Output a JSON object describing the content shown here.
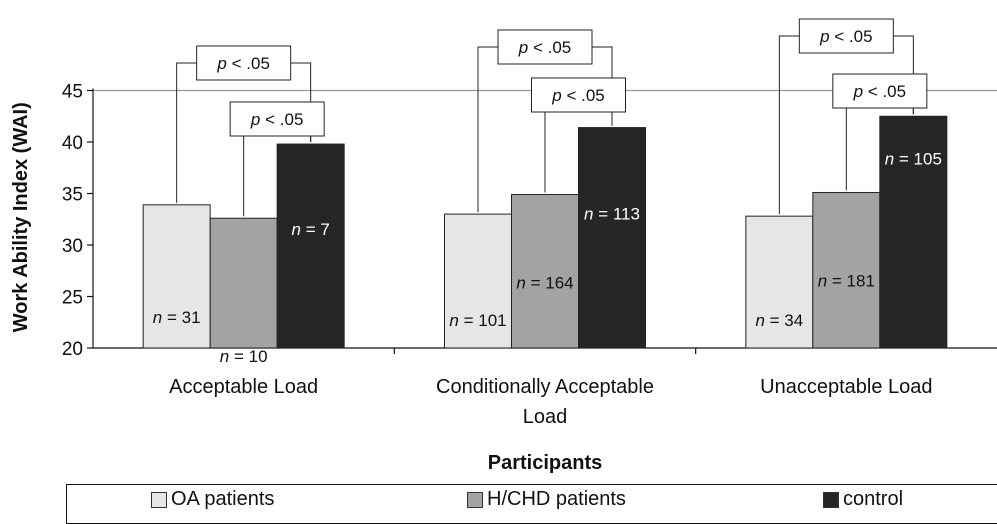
{
  "chart_data": {
    "type": "bar",
    "categories": [
      "Acceptable Load",
      "Conditionally Acceptable Load",
      "Unacceptable Load"
    ],
    "series": [
      {
        "name": "OA patients",
        "color": "#e6e6e6",
        "values": [
          33.9,
          33.0,
          32.8
        ],
        "n_labels": [
          "n = 31",
          "n = 101",
          "n = 34"
        ]
      },
      {
        "name": "H/CHD patients",
        "color": "#a3a3a3",
        "values": [
          32.6,
          34.9,
          35.1
        ],
        "n_labels": [
          "n = 10",
          "n = 164",
          "n = 181"
        ]
      },
      {
        "name": "control",
        "color": "#262626",
        "values": [
          39.8,
          41.4,
          42.5
        ],
        "n_labels": [
          "n = 7",
          "n = 113",
          "n = 105"
        ]
      }
    ],
    "ylabel": "Work Ability Index (WAI)",
    "xlabel": "Participants",
    "ylim": [
      20,
      45
    ],
    "yticks": [
      20,
      25,
      30,
      35,
      40,
      45
    ],
    "reference_line": 45,
    "significance": [
      {
        "category": 0,
        "from": 0,
        "to": 2,
        "label": "p < .05"
      },
      {
        "category": 0,
        "from": 1,
        "to": 2,
        "label": "p < .05"
      },
      {
        "category": 1,
        "from": 0,
        "to": 2,
        "label": "p < .05"
      },
      {
        "category": 1,
        "from": 1,
        "to": 2,
        "label": "p < .05"
      },
      {
        "category": 2,
        "from": 0,
        "to": 2,
        "label": "p < .05"
      },
      {
        "category": 2,
        "from": 1,
        "to": 2,
        "label": "p < .05"
      }
    ],
    "grid": false,
    "legend_position": "bottom"
  },
  "legend": [
    {
      "label": "OA patients",
      "color": "#e6e6e6"
    },
    {
      "label": "H/CHD patients",
      "color": "#a3a3a3"
    },
    {
      "label": "control",
      "color": "#262626"
    }
  ]
}
